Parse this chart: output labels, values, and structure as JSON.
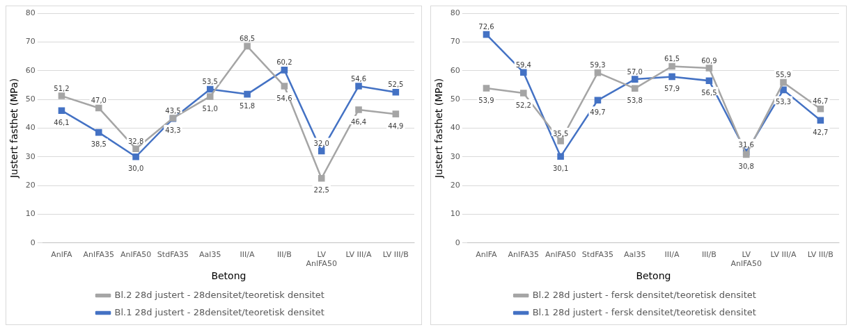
{
  "chart_data": [
    {
      "type": "line",
      "xlabel": "Betong",
      "ylabel": "Justert fasthet (MPa)",
      "categories": [
        "AnlFA",
        "AnlFA35",
        "AnlFA50",
        "StdFA35",
        "Aal35",
        "III/A",
        "III/B",
        "LV AnlFA50",
        "LV III/A",
        "LV III/B"
      ],
      "series": [
        {
          "name": "Bl.2 28d justert - 28densitet/teoretisk densitet",
          "color": "#a5a5a5",
          "values": [
            51.2,
            47.0,
            32.8,
            43.5,
            51.0,
            68.5,
            54.6,
            22.5,
            46.4,
            44.9
          ],
          "value_labels": [
            "51,2",
            "47,0",
            "32,8",
            "43,5",
            "51,0",
            "68,5",
            "54,6",
            "22,5",
            "46,4",
            "44,9"
          ]
        },
        {
          "name": "Bl.1 28d justert - 28densitet/teoretisk densitet",
          "color": "#4472c4",
          "values": [
            46.1,
            38.5,
            30.0,
            43.3,
            53.5,
            51.8,
            60.2,
            32.0,
            54.6,
            52.5
          ],
          "value_labels": [
            "46,1",
            "38,5",
            "30,0",
            "43,3",
            "53,5",
            "51,8",
            "60,2",
            "32,0",
            "54,6",
            "52,5"
          ]
        }
      ],
      "ylim": [
        0,
        80
      ],
      "yticks": [
        0,
        10,
        20,
        30,
        40,
        50,
        60,
        70,
        80
      ],
      "grid": "y",
      "legend": "bottom",
      "marker": "square"
    },
    {
      "type": "line",
      "xlabel": "Betong",
      "ylabel": "Justert fasthet (MPa)",
      "categories": [
        "AnlFA",
        "AnlFA35",
        "AnlFA50",
        "StdFA35",
        "Aal35",
        "III/A",
        "III/B",
        "LV AnlFA50",
        "LV III/A",
        "LV III/B"
      ],
      "series": [
        {
          "name": "Bl.2 28d justert - fersk densitet/teoretisk densitet",
          "color": "#a5a5a5",
          "values": [
            53.9,
            52.2,
            35.5,
            59.3,
            53.8,
            61.5,
            60.9,
            30.8,
            55.9,
            46.7
          ],
          "value_labels": [
            "53,9",
            "52,2",
            "35,5",
            "59,3",
            "53,8",
            "61,5",
            "60,9",
            "30,8",
            "55,9",
            "46,7"
          ]
        },
        {
          "name": "Bl.1 28d justert - fersk densitet/teoretisk densitet",
          "color": "#4472c4",
          "values": [
            72.6,
            59.4,
            30.1,
            49.7,
            57.0,
            57.9,
            56.5,
            31.6,
            53.3,
            42.7
          ],
          "value_labels": [
            "72,6",
            "59,4",
            "30,1",
            "49,7",
            "57,0",
            "57,9",
            "56,5",
            "31,6",
            "53,3",
            "42,7"
          ]
        }
      ],
      "ylim": [
        0,
        80
      ],
      "yticks": [
        0,
        10,
        20,
        30,
        40,
        50,
        60,
        70,
        80
      ],
      "grid": "y",
      "legend": "bottom",
      "marker": "square"
    }
  ]
}
